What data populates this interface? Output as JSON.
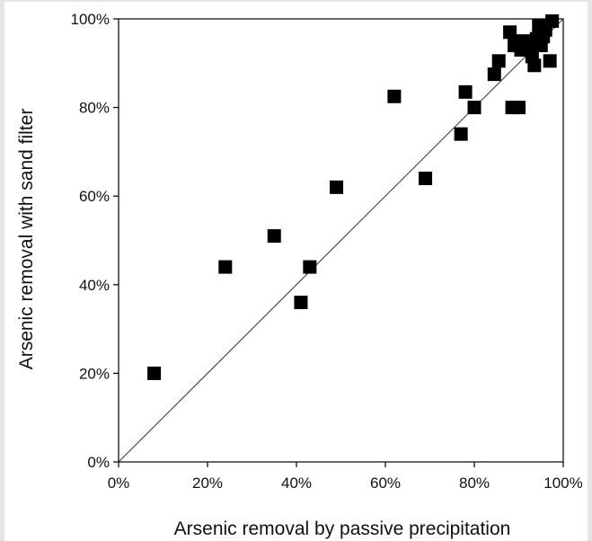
{
  "chart_data": {
    "type": "scatter",
    "xlabel": "Arsenic removal by passive precipitation",
    "ylabel": "Arsenic removal with sand filter",
    "xlim": [
      0,
      100
    ],
    "ylim": [
      0,
      100
    ],
    "x_ticks": [
      "0%",
      "20%",
      "40%",
      "60%",
      "80%",
      "100%"
    ],
    "y_ticks": [
      "0%",
      "20%",
      "40%",
      "60%",
      "80%",
      "100%"
    ],
    "reference_line": {
      "from": [
        0,
        0
      ],
      "to": [
        100,
        100
      ]
    },
    "marker": {
      "shape": "square",
      "color": "#000000"
    },
    "series": [
      {
        "points": [
          {
            "x": 8,
            "y": 20
          },
          {
            "x": 24,
            "y": 44
          },
          {
            "x": 35,
            "y": 51
          },
          {
            "x": 41,
            "y": 36
          },
          {
            "x": 43,
            "y": 44
          },
          {
            "x": 49,
            "y": 62
          },
          {
            "x": 62,
            "y": 82.5
          },
          {
            "x": 69,
            "y": 64
          },
          {
            "x": 77,
            "y": 74
          },
          {
            "x": 78,
            "y": 83.5
          },
          {
            "x": 80,
            "y": 80
          },
          {
            "x": 84.5,
            "y": 87.5
          },
          {
            "x": 85.5,
            "y": 90.5
          },
          {
            "x": 88,
            "y": 97
          },
          {
            "x": 88.5,
            "y": 80
          },
          {
            "x": 89,
            "y": 94
          },
          {
            "x": 90,
            "y": 80
          },
          {
            "x": 90.5,
            "y": 93
          },
          {
            "x": 91,
            "y": 95
          },
          {
            "x": 91.5,
            "y": 93.5
          },
          {
            "x": 92.5,
            "y": 93
          },
          {
            "x": 93,
            "y": 91.5
          },
          {
            "x": 93.5,
            "y": 89.5
          },
          {
            "x": 94,
            "y": 95.5
          },
          {
            "x": 94.5,
            "y": 98.5
          },
          {
            "x": 95,
            "y": 94
          },
          {
            "x": 95.5,
            "y": 96
          },
          {
            "x": 96,
            "y": 97.5
          },
          {
            "x": 97,
            "y": 90.5
          },
          {
            "x": 97.5,
            "y": 99.5
          }
        ]
      }
    ]
  }
}
